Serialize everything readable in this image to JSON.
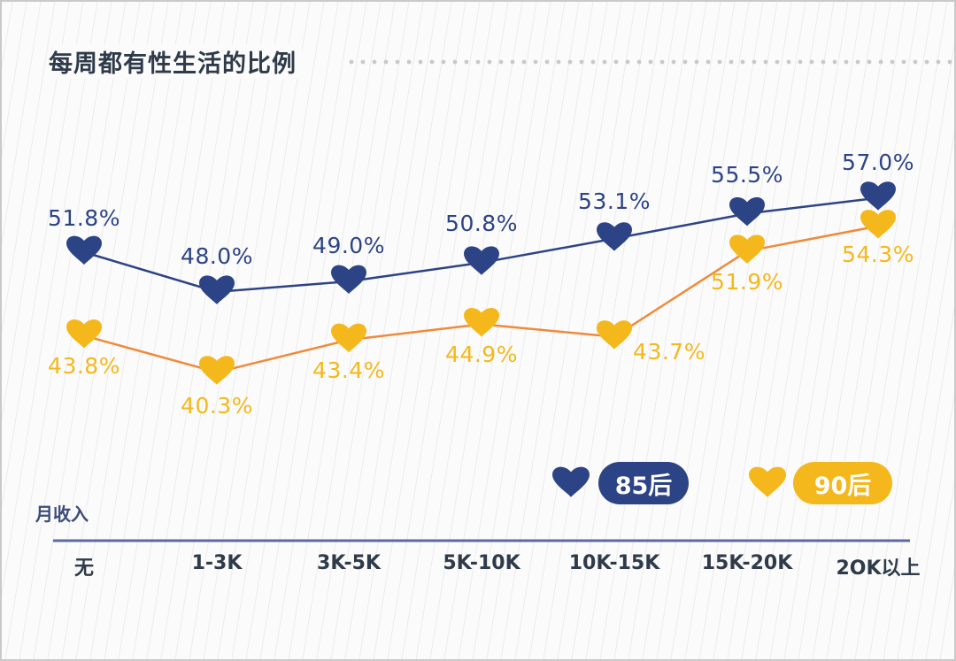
{
  "chart_data": {
    "type": "line",
    "title": "每周都有性生活的比例",
    "xlabel": "月收入",
    "ylabel": "",
    "categories": [
      "无",
      "1-3K",
      "3K-5K",
      "5K-10K",
      "10K-15K",
      "15K-20K",
      "2OK以上"
    ],
    "series": [
      {
        "name": "85后",
        "color": "#2c4386",
        "values": [
          51.8,
          48.0,
          49.0,
          50.8,
          53.1,
          55.5,
          57.0
        ],
        "labels": [
          "51.8%",
          "48.0%",
          "49.0%",
          "50.8%",
          "53.1%",
          "55.5%",
          "57.0%"
        ]
      },
      {
        "name": "90后",
        "color": "#f5b81c",
        "line_color": "#f08a3a",
        "values": [
          43.8,
          40.3,
          43.4,
          44.9,
          43.7,
          51.9,
          54.3
        ],
        "labels": [
          "43.8%",
          "40.3%",
          "43.4%",
          "44.9%",
          "43.7%",
          "51.9%",
          "54.3%"
        ]
      }
    ],
    "marker": "heart",
    "legend_position": "bottom-right",
    "grid": false
  }
}
